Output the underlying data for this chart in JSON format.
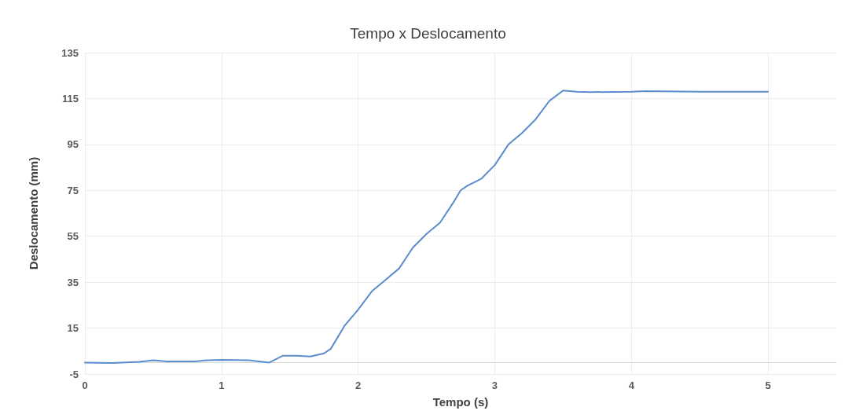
{
  "chart_data": {
    "type": "line",
    "title": "Tempo x Deslocamento",
    "xlabel": "Tempo (s)",
    "ylabel": "Deslocamento (mm)",
    "x": [
      0,
      0.2,
      0.4,
      0.5,
      0.6,
      0.8,
      0.9,
      1.0,
      1.2,
      1.35,
      1.45,
      1.55,
      1.65,
      1.75,
      1.8,
      1.9,
      2.0,
      2.1,
      2.2,
      2.3,
      2.4,
      2.5,
      2.6,
      2.7,
      2.75,
      2.8,
      2.9,
      3.0,
      3.1,
      3.2,
      3.3,
      3.4,
      3.5,
      3.6,
      3.7,
      4.0,
      4.1,
      4.5,
      5.0
    ],
    "series": [
      {
        "color": "#5b8ccc",
        "values": [
          0,
          -0.2,
          0.3,
          1,
          0.5,
          0.5,
          1,
          1.2,
          1,
          0,
          3,
          3,
          2.6,
          4,
          6,
          16,
          23,
          31,
          36,
          41,
          50,
          56,
          61,
          70,
          75,
          77,
          80,
          86,
          95,
          100,
          106,
          114,
          118.5,
          118,
          117.8,
          118,
          118.2,
          118,
          118
        ]
      }
    ],
    "xlim": [
      0,
      5.5
    ],
    "xticks": [
      0,
      1,
      2,
      3,
      4,
      5
    ],
    "ylim": [
      -5,
      135
    ],
    "yticks": [
      -5,
      15,
      35,
      55,
      75,
      95,
      115,
      135
    ],
    "grid": true,
    "marker": "none",
    "line_style": "solid"
  }
}
